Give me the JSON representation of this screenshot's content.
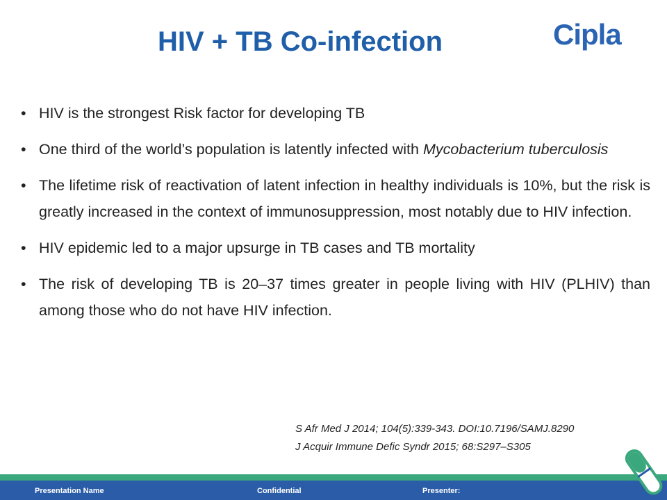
{
  "header": {
    "title": "HIV + TB Co-infection",
    "logo": "Cipla"
  },
  "bullets": [
    {
      "text": "HIV is the strongest Risk factor for developing TB"
    },
    {
      "text": "One third of the world’s population is latently infected with",
      "italic": "Mycobacterium tuberculosis"
    },
    {
      "text": "The lifetime risk of reactivation of latent infection in healthy individuals is 10%, but the risk is greatly increased in the context of immunosuppression, most notably due to HIV infection."
    },
    {
      "text": "HIV epidemic led to a major upsurge in TB cases and TB mortality"
    },
    {
      "text": "The risk of developing TB is 20–37 times greater in people living with HIV (PLHIV) than among those who do not have HIV infection."
    }
  ],
  "references": [
    "S Afr Med J 2014; 104(5):339-343. DOI:10.7196/SAMJ.8290",
    "J Acquir Immune Defic Syndr 2015; 68:S297–S305"
  ],
  "footer": {
    "presentation_name": "Presentation Name",
    "confidential": "Confidential",
    "presenter": "Presenter:"
  }
}
